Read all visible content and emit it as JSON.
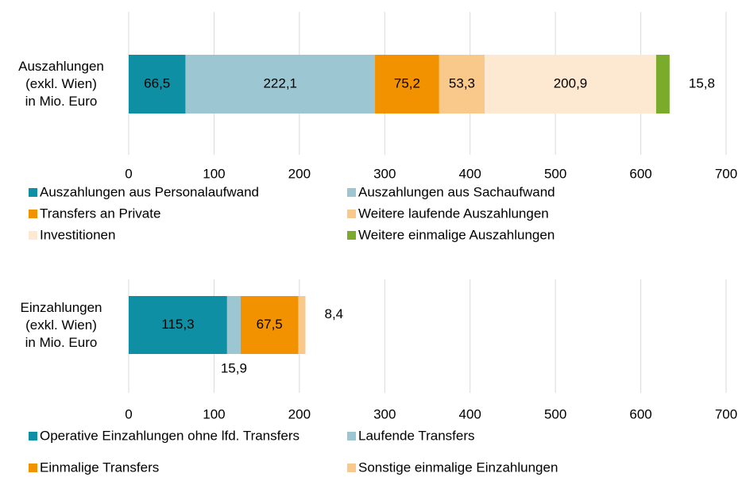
{
  "chart_data": [
    {
      "type": "bar",
      "orientation": "horizontal",
      "categories": [
        "Auszahlungen\n(exkl. Wien)\nin Mio. Euro"
      ],
      "series": [
        {
          "name": "Auszahlungen aus Personalaufwand",
          "color": "#0e8fa3",
          "values": [
            66.5
          ],
          "value_labels": [
            "66,5"
          ]
        },
        {
          "name": "Auszahlungen aus Sachaufwand",
          "color": "#9dc6d3",
          "values": [
            222.1
          ],
          "value_labels": [
            "222,1"
          ]
        },
        {
          "name": "Transfers an Private",
          "color": "#f39200",
          "values": [
            75.2
          ],
          "value_labels": [
            "75,2"
          ]
        },
        {
          "name": "Weitere laufende Auszahlungen",
          "color": "#f9c98b",
          "values": [
            53.3
          ],
          "value_labels": [
            "53,3"
          ]
        },
        {
          "name": "Investitionen",
          "color": "#fde9d2",
          "values": [
            200.9
          ],
          "value_labels": [
            "200,9"
          ]
        },
        {
          "name": "Weitere einmalige Auszahlungen",
          "color": "#7aab2a",
          "values": [
            15.8
          ],
          "value_labels": [
            "15,8"
          ]
        }
      ],
      "xlim": [
        0,
        700
      ],
      "xticks": [
        0,
        100,
        200,
        300,
        400,
        500,
        600,
        700
      ],
      "grid": true,
      "legend": "bottom"
    },
    {
      "type": "bar",
      "orientation": "horizontal",
      "categories": [
        "Einzahlungen\n(exkl. Wien)\nin Mio. Euro"
      ],
      "series": [
        {
          "name": "Operative Einzahlungen ohne lfd. Transfers",
          "color": "#0e8fa3",
          "values": [
            115.3
          ],
          "value_labels": [
            "115,3"
          ]
        },
        {
          "name": "Laufende Transfers",
          "color": "#9dc6d3",
          "values": [
            15.9
          ],
          "value_labels": [
            "15,9"
          ]
        },
        {
          "name": "Einmalige Transfers",
          "color": "#f39200",
          "values": [
            67.5
          ],
          "value_labels": [
            "67,5"
          ]
        },
        {
          "name": "Sonstige einmalige Einzahlungen",
          "color": "#f9c98b",
          "values": [
            8.4
          ],
          "value_labels": [
            "8,4"
          ]
        }
      ],
      "xlim": [
        0,
        700
      ],
      "xticks": [
        0,
        100,
        200,
        300,
        400,
        500,
        600,
        700
      ],
      "grid": true,
      "legend": "bottom"
    }
  ]
}
